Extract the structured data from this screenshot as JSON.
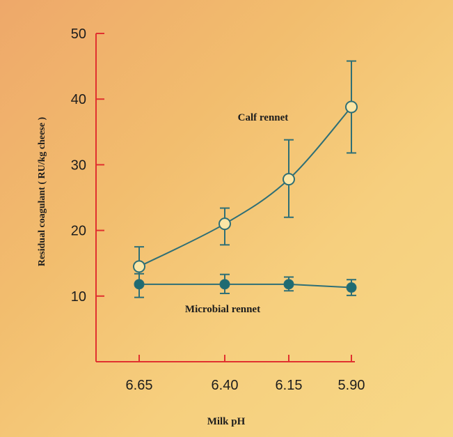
{
  "chart_data": {
    "type": "line",
    "title": "",
    "xlabel": "Milk pH",
    "ylabel": "Residual coagulant ( RU/kg cheese )",
    "categories": [
      "6.65",
      "6.40",
      "6.15",
      "5.90"
    ],
    "yticks": [
      "10",
      "20",
      "30",
      "40",
      "50"
    ],
    "ylim": [
      0,
      50
    ],
    "grid": false,
    "legend": "none",
    "series": [
      {
        "name": "Calf rennet",
        "marker": "open-circle",
        "values": [
          14.5,
          21.0,
          27.8,
          38.8
        ],
        "error_low": [
          11.8,
          17.8,
          22.0,
          31.8
        ],
        "error_high": [
          17.5,
          23.4,
          33.8,
          45.8
        ]
      },
      {
        "name": "Microbial rennet",
        "marker": "filled-circle",
        "values": [
          11.8,
          11.8,
          11.8,
          11.3
        ],
        "error_low": [
          9.8,
          10.4,
          10.8,
          10.1
        ],
        "error_high": [
          13.4,
          13.3,
          12.9,
          12.5
        ]
      }
    ]
  },
  "colors": {
    "axis": "#e0302f",
    "line": "#2e6f76",
    "marker_fill": "#1f6b72",
    "open_marker_fill": "#fbe6a6",
    "text": "#1d1d1d"
  }
}
